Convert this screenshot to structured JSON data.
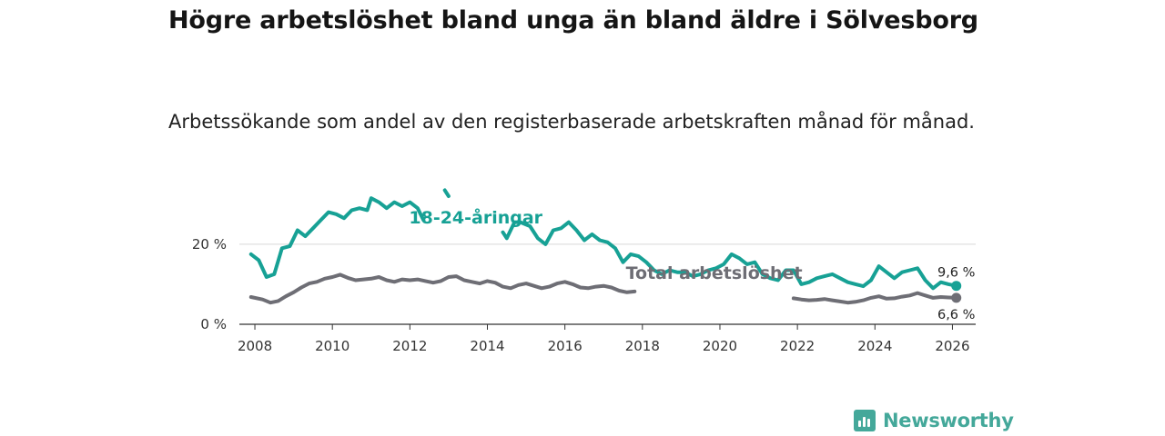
{
  "page": {
    "title": "Högre arbetslöshet bland unga än bland äldre i Sölvesborg",
    "subtitle": "Arbetssökande som andel av den registerbaserade arbetskraften månad för månad."
  },
  "brand": {
    "name": "Newsworthy",
    "color": "#44a89a"
  },
  "chart_data": {
    "type": "line",
    "title": "Högre arbetslöshet bland unga än bland äldre i Sölvesborg",
    "subtitle": "Arbetssökande som andel av den registerbaserade arbetskraften månad för månad.",
    "xlabel": "",
    "ylabel": "",
    "xlim": [
      2007.6,
      2026.6
    ],
    "ylim": [
      0,
      32
    ],
    "grid": "horizontal",
    "y_ticks": [
      {
        "value": 0,
        "label": "0 %"
      },
      {
        "value": 20,
        "label": "20 %"
      }
    ],
    "x_ticks": [
      {
        "value": 2008,
        "label": "2008"
      },
      {
        "value": 2010,
        "label": "2010"
      },
      {
        "value": 2012,
        "label": "2012"
      },
      {
        "value": 2014,
        "label": "2014"
      },
      {
        "value": 2016,
        "label": "2016"
      },
      {
        "value": 2018,
        "label": "2018"
      },
      {
        "value": 2020,
        "label": "2020"
      },
      {
        "value": 2022,
        "label": "2022"
      },
      {
        "value": 2024,
        "label": "2024"
      },
      {
        "value": 2026,
        "label": "2026"
      }
    ],
    "series": [
      {
        "name": "18-24-åringar",
        "label": "18-24-åringar",
        "color": "#17a195",
        "end_label": "9,6 %",
        "x": [
          2007.9,
          2008.1,
          2008.3,
          2008.5,
          2008.7,
          2008.9,
          2009.1,
          2009.3,
          2009.5,
          2009.7,
          2009.9,
          2010.1,
          2010.3,
          2010.5,
          2010.7,
          2010.9,
          2011.0,
          2011.2,
          2011.4,
          2011.6,
          2011.8,
          2012.0,
          2012.2,
          2012.35,
          2012.9,
          2013.0,
          2014.4,
          2014.5,
          2014.7,
          2014.85,
          2015.1,
          2015.3,
          2015.5,
          2015.7,
          2015.9,
          2016.1,
          2016.3,
          2016.5,
          2016.7,
          2016.9,
          2017.1,
          2017.3,
          2017.5,
          2017.7,
          2017.9,
          2018.1,
          2018.3,
          2018.5,
          2018.7,
          2018.9,
          2019.1,
          2019.3,
          2019.5,
          2019.7,
          2019.9,
          2020.1,
          2020.3,
          2020.5,
          2020.7,
          2020.9,
          2021.1,
          2021.3,
          2021.5,
          2021.7,
          2021.9,
          2022.1,
          2022.3,
          2022.5,
          2022.7,
          2022.9,
          2023.1,
          2023.3,
          2023.5,
          2023.7,
          2023.9,
          2024.1,
          2024.3,
          2024.5,
          2024.7,
          2024.9,
          2025.1,
          2025.3,
          2025.5,
          2025.7,
          2025.9,
          2026.1
        ],
        "values": [
          17.5,
          16.0,
          11.8,
          12.5,
          19.0,
          19.5,
          23.5,
          22.0,
          24.0,
          26.0,
          28.0,
          27.5,
          26.5,
          28.5,
          29.0,
          28.5,
          31.5,
          30.5,
          29.0,
          30.5,
          29.5,
          30.5,
          29.0,
          26.0,
          33.5,
          32.0,
          23.0,
          21.5,
          25.5,
          25.5,
          24.5,
          21.5,
          20.0,
          23.5,
          24.0,
          25.5,
          23.5,
          21.0,
          22.5,
          21.0,
          20.5,
          19.0,
          15.5,
          17.5,
          17.0,
          15.5,
          13.5,
          12.5,
          13.5,
          13.0,
          13.0,
          12.0,
          12.5,
          13.5,
          14.0,
          15.0,
          17.5,
          16.5,
          15.0,
          15.5,
          12.5,
          11.5,
          11.0,
          13.5,
          13.5,
          10.0,
          10.5,
          11.5,
          12.0,
          12.5,
          11.5,
          10.5,
          10.0,
          9.5,
          11.0,
          14.5,
          13.0,
          11.5,
          13.0,
          13.5,
          14.0,
          11.0,
          9.0,
          10.5,
          10.0,
          9.6
        ]
      },
      {
        "name": "Total arbetslöshet",
        "label": "Total arbetslöshet",
        "color": "#6e6e75",
        "end_label": "6,6 %",
        "x": [
          2007.9,
          2008.2,
          2008.4,
          2008.6,
          2008.8,
          2009.0,
          2009.2,
          2009.4,
          2009.6,
          2009.8,
          2010.0,
          2010.2,
          2010.4,
          2010.6,
          2010.8,
          2011.0,
          2011.2,
          2011.4,
          2011.6,
          2011.8,
          2012.0,
          2012.2,
          2012.4,
          2012.6,
          2012.8,
          2013.0,
          2013.2,
          2013.4,
          2013.6,
          2013.8,
          2014.0,
          2014.2,
          2014.4,
          2014.6,
          2014.8,
          2015.0,
          2015.2,
          2015.4,
          2015.6,
          2015.8,
          2016.0,
          2016.2,
          2016.4,
          2016.6,
          2016.8,
          2017.0,
          2017.2,
          2017.4,
          2017.6,
          2017.8,
          2021.9,
          2022.1,
          2022.3,
          2022.5,
          2022.7,
          2022.9,
          2023.1,
          2023.3,
          2023.5,
          2023.7,
          2023.9,
          2024.1,
          2024.3,
          2024.5,
          2024.7,
          2024.9,
          2025.1,
          2025.3,
          2025.5,
          2025.7,
          2025.9,
          2026.1
        ],
        "values": [
          6.8,
          6.2,
          5.4,
          5.8,
          7.0,
          8.0,
          9.2,
          10.2,
          10.6,
          11.4,
          11.8,
          12.4,
          11.6,
          11.0,
          11.2,
          11.4,
          11.8,
          11.0,
          10.6,
          11.2,
          11.0,
          11.2,
          10.8,
          10.4,
          10.8,
          11.8,
          12.0,
          11.0,
          10.6,
          10.2,
          10.8,
          10.4,
          9.4,
          9.0,
          9.8,
          10.2,
          9.6,
          9.0,
          9.4,
          10.2,
          10.6,
          10.0,
          9.2,
          9.0,
          9.4,
          9.6,
          9.2,
          8.4,
          8.0,
          8.2,
          6.5,
          6.2,
          6.0,
          6.1,
          6.3,
          6.0,
          5.7,
          5.4,
          5.6,
          6.0,
          6.6,
          7.0,
          6.4,
          6.5,
          6.9,
          7.2,
          7.8,
          7.2,
          6.6,
          6.8,
          6.7,
          6.6
        ]
      }
    ]
  }
}
